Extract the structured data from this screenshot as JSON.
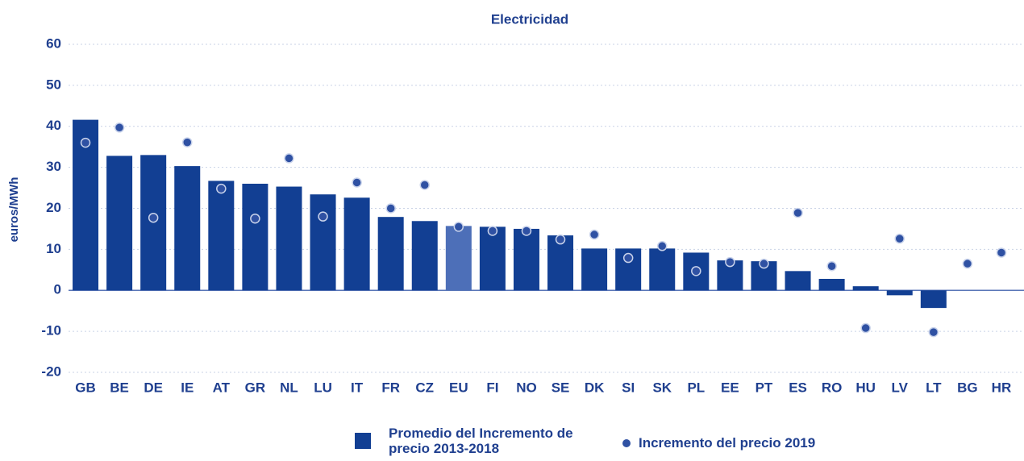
{
  "chart_data": {
    "type": "bar",
    "title": "Electricidad",
    "y_label": "euros/MWh",
    "categories": [
      "GB",
      "BE",
      "DE",
      "IE",
      "AT",
      "GR",
      "NL",
      "LU",
      "IT",
      "FR",
      "CZ",
      "EU",
      "FI",
      "NO",
      "SE",
      "DK",
      "SI",
      "SK",
      "PL",
      "EE",
      "PT",
      "ES",
      "RO",
      "HU",
      "LV",
      "LT",
      "BG",
      "HR"
    ],
    "series": [
      {
        "name": "Promedio del Incremento de precio 2013-2018",
        "type": "bar",
        "color": "#123f93",
        "highlight": {
          "category": "EU",
          "color": "#4d6fb8"
        },
        "values": [
          41.6,
          32.8,
          33,
          30.3,
          26.7,
          26,
          25.3,
          23.4,
          22.6,
          17.9,
          16.9,
          15.7,
          15.5,
          15,
          13.4,
          10.2,
          10.2,
          10.2,
          9.2,
          7.3,
          7.1,
          4.7,
          2.8,
          1,
          -1.2,
          -4.3,
          null,
          null
        ]
      },
      {
        "name": "Incremento del precio 2019",
        "type": "scatter",
        "color": "#2f51a3",
        "values": [
          36,
          39.7,
          17.7,
          36.1,
          24.8,
          17.5,
          32.2,
          18,
          26.3,
          20,
          25.7,
          15.5,
          14.5,
          14.5,
          12.4,
          13.6,
          7.9,
          10.8,
          4.7,
          6.9,
          6.5,
          18.9,
          5.9,
          -9.2,
          12.6,
          -10.2,
          6.5,
          9.2
        ]
      }
    ],
    "ylim": [
      -20,
      60
    ],
    "yticks": [
      -20,
      -10,
      0,
      10,
      20,
      30,
      40,
      50,
      60
    ],
    "grid": true
  }
}
